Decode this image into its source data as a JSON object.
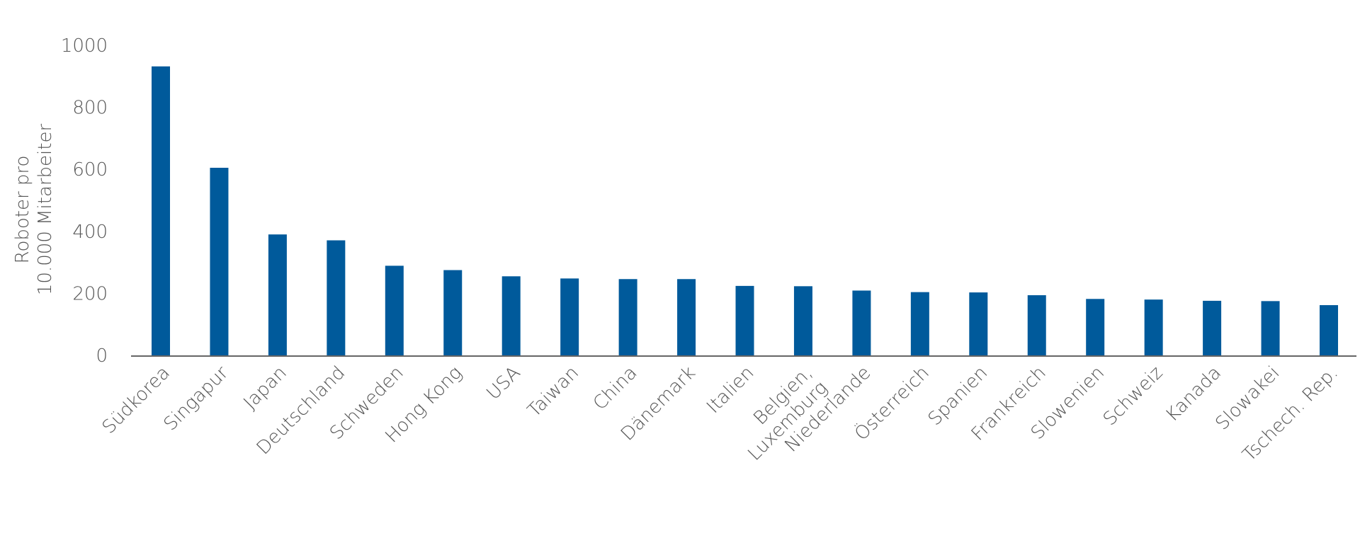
{
  "chart_data": {
    "type": "bar",
    "title": "",
    "xlabel": "",
    "ylabel": [
      "Roboter pro",
      "10.000 Mitarbeiter"
    ],
    "ylim": [
      0,
      1000
    ],
    "yticks": [
      0,
      200,
      400,
      600,
      800,
      1000
    ],
    "grid": false,
    "legend": "none",
    "bar_color": "#005a9b",
    "categories": [
      [
        "Südkorea"
      ],
      [
        "Singapur"
      ],
      [
        "Japan"
      ],
      [
        "Deutschland"
      ],
      [
        "Schweden"
      ],
      [
        "Hong Kong"
      ],
      [
        "USA"
      ],
      [
        "Taiwan"
      ],
      [
        "China"
      ],
      [
        "Dänemark"
      ],
      [
        "Italien"
      ],
      [
        "Belgien,",
        "Luxemburg"
      ],
      [
        "Niederlande"
      ],
      [
        "Österreich"
      ],
      [
        "Spanien"
      ],
      [
        "Frankreich"
      ],
      [
        "Slowenien"
      ],
      [
        "Schweiz"
      ],
      [
        "Kanada"
      ],
      [
        "Slowakei"
      ],
      [
        "Tschech. Rep."
      ]
    ],
    "values": [
      932,
      605,
      390,
      371,
      289,
      275,
      255,
      248,
      246,
      246,
      224,
      223,
      209,
      204,
      203,
      194,
      182,
      180,
      176,
      175,
      162
    ]
  }
}
